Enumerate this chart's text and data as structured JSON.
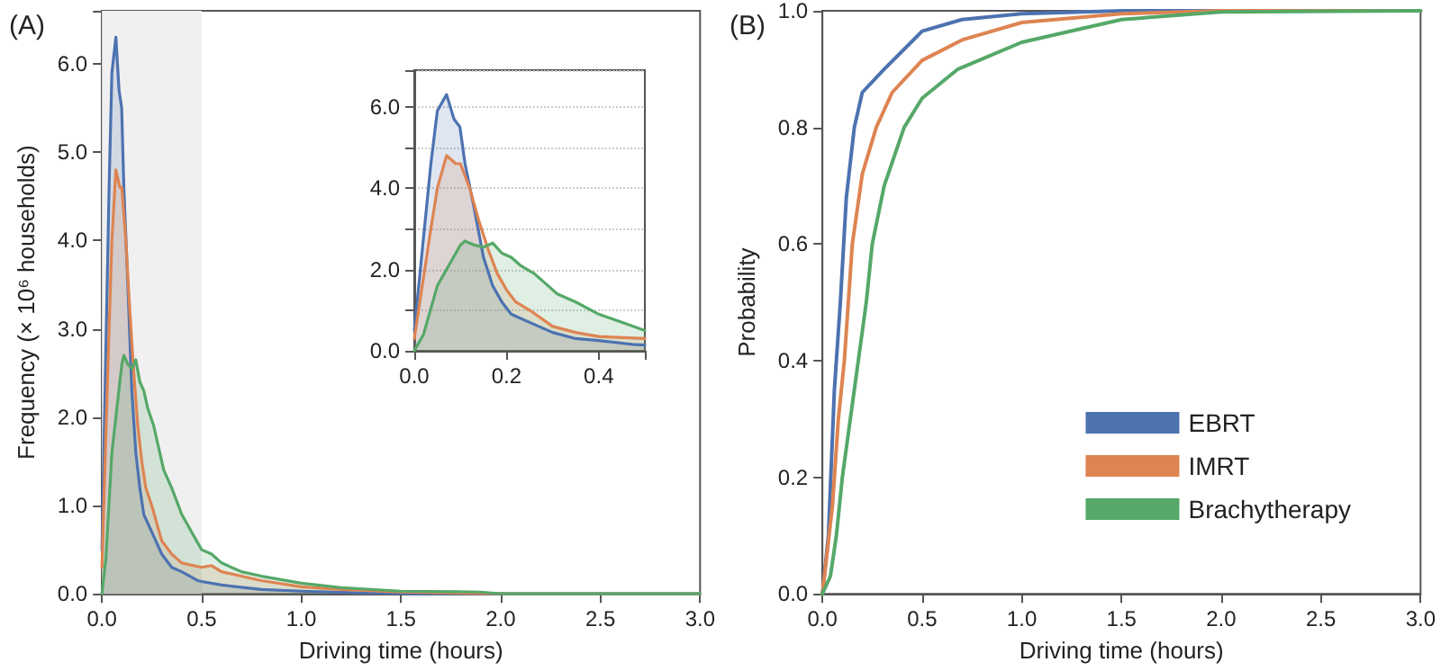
{
  "chart_data": [
    {
      "type": "area",
      "title": "(A)",
      "xlabel": "Driving time (hours)",
      "ylabel": "Frequency (× 10⁶ households)",
      "xlim": [
        0,
        3
      ],
      "ylim": [
        0,
        6.6
      ],
      "xticks": [
        {
          "value": 0,
          "label": "0.0"
        },
        {
          "value": 0.5,
          "label": "0.5"
        },
        {
          "value": 1,
          "label": "1.0"
        },
        {
          "value": 1.5,
          "label": "1.5"
        },
        {
          "value": 2,
          "label": "2.0"
        },
        {
          "value": 2.5,
          "label": "2.5"
        },
        {
          "value": 3,
          "label": "3.0"
        }
      ],
      "yticks": [
        {
          "value": 0,
          "label": "0.0"
        },
        {
          "value": 1,
          "label": "1.0"
        },
        {
          "value": 2,
          "label": "2.0"
        },
        {
          "value": 3,
          "label": "3.0"
        },
        {
          "value": 4,
          "label": "4.0"
        },
        {
          "value": 5,
          "label": "5.0"
        },
        {
          "value": 6,
          "label": "6.0"
        }
      ],
      "marker": "none",
      "grid": false,
      "legend": false,
      "bands": [
        {
          "axis": "x",
          "from": 0,
          "to": 0.5,
          "color": "#f0f0f0"
        }
      ],
      "series": [
        {
          "color": "#4c72b0",
          "x": [
            0,
            0.036,
            0.05,
            0.07,
            0.086,
            0.099,
            0.11,
            0.13,
            0.15,
            0.17,
            0.19,
            0.21,
            0.25,
            0.3,
            0.35,
            0.4,
            0.48,
            0.5,
            0.6,
            0.8,
            1.0,
            1.3,
            1.6,
            2.0,
            3.0
          ],
          "values": [
            0.5,
            4.6,
            5.9,
            6.3,
            5.7,
            5.5,
            4.6,
            3.5,
            2.3,
            1.6,
            1.2,
            0.9,
            0.7,
            0.45,
            0.3,
            0.25,
            0.15,
            0.14,
            0.1,
            0.05,
            0.03,
            0.01,
            0,
            0,
            0
          ]
        },
        {
          "color": "#dd8452",
          "x": [
            0,
            0.036,
            0.05,
            0.07,
            0.09,
            0.1,
            0.12,
            0.14,
            0.16,
            0.18,
            0.2,
            0.22,
            0.25,
            0.3,
            0.35,
            0.4,
            0.5,
            0.55,
            0.6,
            0.8,
            1.0,
            1.2,
            1.5,
            2.0,
            3.0
          ],
          "values": [
            0.3,
            3.0,
            4.0,
            4.8,
            4.6,
            4.6,
            4.0,
            3.2,
            2.5,
            1.9,
            1.5,
            1.2,
            1.0,
            0.6,
            0.45,
            0.35,
            0.3,
            0.32,
            0.25,
            0.15,
            0.08,
            0.05,
            0.02,
            0,
            0
          ]
        },
        {
          "color": "#55a868",
          "x": [
            0,
            0.02,
            0.05,
            0.07,
            0.1,
            0.11,
            0.13,
            0.15,
            0.17,
            0.19,
            0.21,
            0.23,
            0.26,
            0.28,
            0.31,
            0.35,
            0.4,
            0.45,
            0.5,
            0.55,
            0.6,
            0.7,
            0.8,
            1.0,
            1.2,
            1.5,
            1.9,
            2.0,
            3.0
          ],
          "values": [
            0,
            0.4,
            1.6,
            2.0,
            2.6,
            2.7,
            2.6,
            2.55,
            2.65,
            2.4,
            2.3,
            2.1,
            1.9,
            1.7,
            1.4,
            1.2,
            0.9,
            0.7,
            0.5,
            0.45,
            0.35,
            0.25,
            0.2,
            0.12,
            0.07,
            0.03,
            0.02,
            0,
            0
          ]
        }
      ]
    },
    {
      "type": "area",
      "xlim": [
        0,
        0.5
      ],
      "ylim": [
        0,
        6.9
      ],
      "xticks": [
        {
          "value": 0,
          "label": "0.0"
        },
        {
          "value": 0.2,
          "label": "0.2"
        },
        {
          "value": 0.4,
          "label": "0.4"
        }
      ],
      "yticks": [
        {
          "value": 0,
          "label": "0.0"
        },
        {
          "value": 1,
          "label": null
        },
        {
          "value": 2,
          "label": "2.0"
        },
        {
          "value": 3,
          "label": null
        },
        {
          "value": 4,
          "label": "4.0"
        },
        {
          "value": 5,
          "label": null
        },
        {
          "value": 6,
          "label": "6.0"
        }
      ],
      "marker": "none",
      "grid": "y",
      "legend": false,
      "series": [
        {
          "color": "#4c72b0",
          "x": [
            0,
            0.036,
            0.05,
            0.07,
            0.086,
            0.099,
            0.11,
            0.13,
            0.15,
            0.17,
            0.19,
            0.21,
            0.25,
            0.3,
            0.35,
            0.4,
            0.48,
            0.5
          ],
          "values": [
            0.5,
            4.6,
            5.9,
            6.3,
            5.7,
            5.5,
            4.6,
            3.5,
            2.3,
            1.6,
            1.2,
            0.9,
            0.7,
            0.45,
            0.3,
            0.25,
            0.15,
            0.14
          ]
        },
        {
          "color": "#dd8452",
          "x": [
            0,
            0.036,
            0.05,
            0.07,
            0.09,
            0.1,
            0.12,
            0.14,
            0.16,
            0.18,
            0.2,
            0.22,
            0.25,
            0.3,
            0.35,
            0.4,
            0.5
          ],
          "values": [
            0.3,
            3.0,
            4.0,
            4.8,
            4.6,
            4.6,
            4.0,
            3.2,
            2.5,
            1.9,
            1.5,
            1.2,
            1.0,
            0.6,
            0.45,
            0.35,
            0.3
          ]
        },
        {
          "color": "#55a868",
          "x": [
            0,
            0.02,
            0.05,
            0.07,
            0.1,
            0.11,
            0.13,
            0.15,
            0.17,
            0.19,
            0.21,
            0.23,
            0.26,
            0.28,
            0.31,
            0.35,
            0.4,
            0.45,
            0.5
          ],
          "values": [
            0,
            0.4,
            1.6,
            2.0,
            2.6,
            2.7,
            2.6,
            2.55,
            2.65,
            2.4,
            2.3,
            2.1,
            1.9,
            1.7,
            1.4,
            1.2,
            0.9,
            0.7,
            0.5
          ]
        }
      ]
    },
    {
      "type": "line",
      "title": "(B)",
      "xlabel": "Driving time (hours)",
      "ylabel": "Probability",
      "xlim": [
        0,
        3
      ],
      "ylim": [
        0,
        1
      ],
      "xticks": [
        {
          "value": 0,
          "label": "0.0"
        },
        {
          "value": 0.5,
          "label": "0.5"
        },
        {
          "value": 1,
          "label": "1.0"
        },
        {
          "value": 1.5,
          "label": "1.5"
        },
        {
          "value": 2,
          "label": "2.0"
        },
        {
          "value": 2.5,
          "label": "2.5"
        },
        {
          "value": 3,
          "label": "3.0"
        }
      ],
      "yticks": [
        {
          "value": 0,
          "label": "0.0"
        },
        {
          "value": 0.2,
          "label": "0.2"
        },
        {
          "value": 0.4,
          "label": "0.4"
        },
        {
          "value": 0.6,
          "label": "0.6"
        },
        {
          "value": 0.8,
          "label": "0.8"
        },
        {
          "value": 1,
          "label": "1.0"
        }
      ],
      "marker": "none",
      "grid": false,
      "legend": "bottom right",
      "series": [
        {
          "name": "EBRT",
          "color": "#4c72b0",
          "x": [
            0,
            0.03,
            0.06,
            0.09,
            0.12,
            0.16,
            0.2,
            0.31,
            0.5,
            0.7,
            1.0,
            1.5,
            2.0,
            3.0
          ],
          "values": [
            0,
            0.1,
            0.35,
            0.5,
            0.68,
            0.8,
            0.86,
            0.9,
            0.965,
            0.985,
            0.995,
            1,
            1,
            1
          ]
        },
        {
          "name": "IMRT",
          "color": "#dd8452",
          "x": [
            0,
            0.05,
            0.08,
            0.11,
            0.15,
            0.2,
            0.27,
            0.35,
            0.5,
            0.7,
            1.0,
            1.5,
            2.0,
            3.0
          ],
          "values": [
            0,
            0.15,
            0.3,
            0.4,
            0.6,
            0.72,
            0.8,
            0.86,
            0.915,
            0.95,
            0.98,
            0.995,
            1,
            1
          ]
        },
        {
          "name": "Brachytherapy",
          "color": "#55a868",
          "x": [
            0,
            0.04,
            0.07,
            0.1,
            0.14,
            0.18,
            0.22,
            0.25,
            0.31,
            0.41,
            0.5,
            0.68,
            1.0,
            1.5,
            2.0,
            3.0
          ],
          "values": [
            0,
            0.03,
            0.1,
            0.2,
            0.3,
            0.4,
            0.5,
            0.6,
            0.7,
            0.8,
            0.85,
            0.9,
            0.946,
            0.985,
            0.998,
            1
          ]
        }
      ]
    }
  ]
}
